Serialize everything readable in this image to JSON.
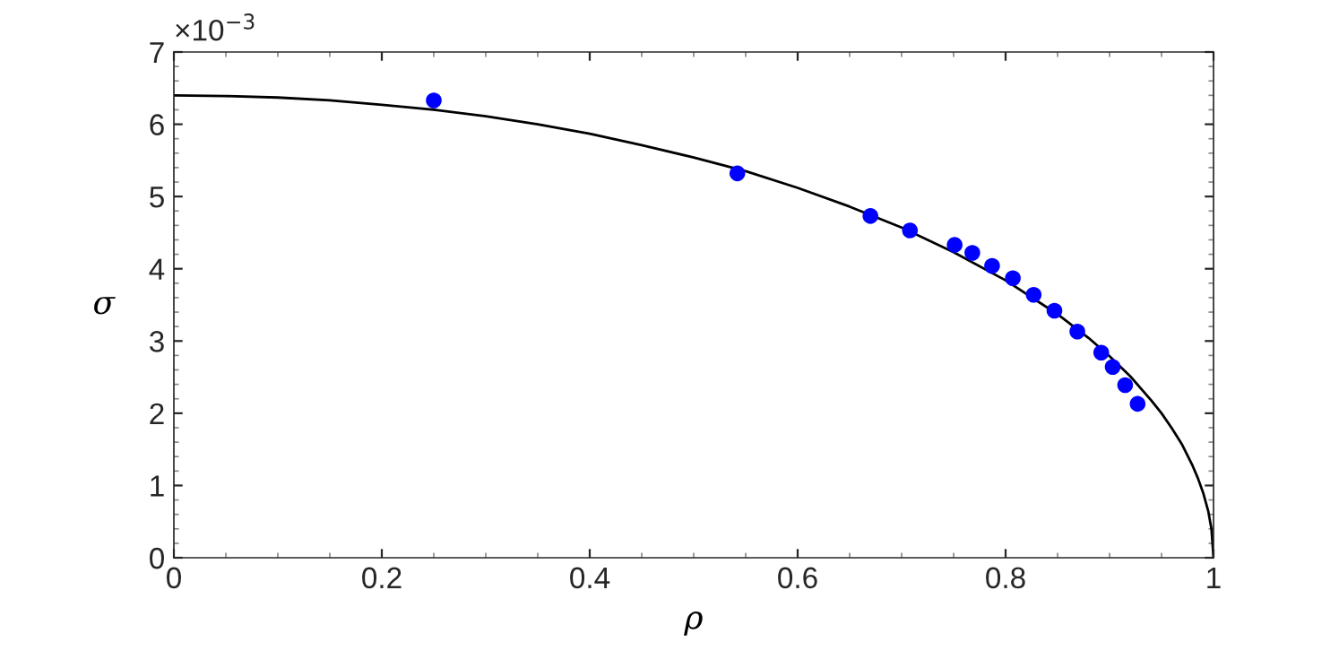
{
  "chart_data": {
    "type": "scatter",
    "xlabel": "ρ",
    "ylabel": "σ",
    "xlim": [
      0,
      1
    ],
    "ylim": [
      0,
      7
    ],
    "xticks": [
      0,
      0.2,
      0.4,
      0.6,
      0.8,
      1
    ],
    "yticks": [
      0,
      1,
      2,
      3,
      4,
      5,
      6,
      7
    ],
    "annotations": [
      "×10$^{−3}$"
    ],
    "grid": false,
    "series": [
      {
        "type": "line",
        "color": "#000000",
        "line_style": "solid",
        "marker": "none",
        "x": [
          0,
          0.05,
          0.1,
          0.15,
          0.2,
          0.25,
          0.3,
          0.35,
          0.4,
          0.45,
          0.5,
          0.55,
          0.6,
          0.65,
          0.7,
          0.75,
          0.8,
          0.85,
          0.88,
          0.9,
          0.92,
          0.94,
          0.95,
          0.96,
          0.97,
          0.98,
          0.985,
          0.99,
          0.995,
          0.998,
          1.0
        ],
        "values": [
          6.4,
          6.39,
          6.37,
          6.33,
          6.27,
          6.2,
          6.11,
          6.0,
          5.87,
          5.71,
          5.54,
          5.35,
          5.12,
          4.86,
          4.57,
          4.23,
          3.84,
          3.37,
          3.04,
          2.79,
          2.51,
          2.18,
          2.0,
          1.79,
          1.56,
          1.27,
          1.1,
          0.9,
          0.64,
          0.4,
          0.0
        ]
      },
      {
        "color": "#0000ff",
        "marker": "circle",
        "x": [
          0.25,
          0.542,
          0.67,
          0.708,
          0.751,
          0.768,
          0.787,
          0.807,
          0.827,
          0.847,
          0.869,
          0.892,
          0.903,
          0.915,
          0.927
        ],
        "values": [
          6.33,
          5.32,
          4.73,
          4.53,
          4.33,
          4.22,
          4.04,
          3.87,
          3.64,
          3.42,
          3.13,
          2.84,
          2.64,
          2.39,
          2.13
        ]
      }
    ]
  }
}
